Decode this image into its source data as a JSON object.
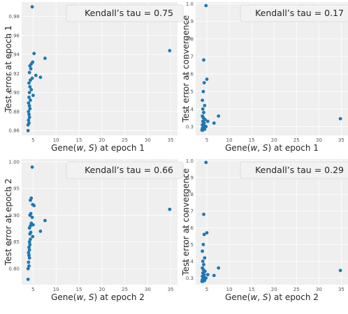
{
  "colors": {
    "point": "#1f77b4",
    "panel_bg": "#efefef",
    "grid": "#ffffff",
    "legend_bg": "#f2f2f2",
    "legend_border": "#d6d6d6"
  },
  "chart_data": [
    {
      "type": "scatter",
      "ylabel": "Test error at epoch 1",
      "xlabel": "Gene(w, S) at epoch 1",
      "annotation": "Kendall’s tau = 0.75",
      "xlim": [
        2.5,
        36.5
      ],
      "ylim": [
        0.855,
        0.995
      ],
      "xticks": [
        "5",
        "10",
        "15",
        "20",
        "25",
        "30",
        "35"
      ],
      "yticks": [
        "0.86",
        "0.88",
        "0.90",
        "0.92",
        "0.94",
        "0.96",
        "0.98"
      ],
      "points": [
        [
          4.8,
          0.99
        ],
        [
          34.8,
          0.944
        ],
        [
          5.2,
          0.941
        ],
        [
          7.6,
          0.936
        ],
        [
          4.9,
          0.932
        ],
        [
          4.6,
          0.93
        ],
        [
          4.3,
          0.928
        ],
        [
          4.5,
          0.925
        ],
        [
          4.2,
          0.921
        ],
        [
          5.6,
          0.918
        ],
        [
          6.6,
          0.916
        ],
        [
          4.8,
          0.915
        ],
        [
          4.4,
          0.913
        ],
        [
          4.1,
          0.91
        ],
        [
          4.3,
          0.906
        ],
        [
          4.6,
          0.903
        ],
        [
          4.2,
          0.9
        ],
        [
          5.0,
          0.897
        ],
        [
          4.1,
          0.895
        ],
        [
          4.4,
          0.892
        ],
        [
          4.0,
          0.889
        ],
        [
          4.2,
          0.886
        ],
        [
          4.3,
          0.883
        ],
        [
          4.0,
          0.88
        ],
        [
          4.1,
          0.877
        ],
        [
          4.2,
          0.874
        ],
        [
          4.0,
          0.871
        ],
        [
          4.1,
          0.868
        ],
        [
          3.9,
          0.866
        ],
        [
          3.9,
          0.86
        ]
      ]
    },
    {
      "type": "scatter",
      "ylabel": "Test error at convergence",
      "xlabel": "Gene(w, S) at epoch 1",
      "annotation": "Kendall’s tau = 0.17",
      "xlim": [
        2.5,
        36.5
      ],
      "ylim": [
        0.25,
        1.01
      ],
      "xticks": [
        "5",
        "10",
        "15",
        "20",
        "25",
        "30",
        "35"
      ],
      "yticks": [
        "0.3",
        "0.4",
        "0.5",
        "0.6",
        "0.7",
        "0.8",
        "0.9",
        "1.0"
      ],
      "points": [
        [
          4.8,
          0.99
        ],
        [
          4.3,
          0.68
        ],
        [
          5.0,
          0.57
        ],
        [
          4.4,
          0.55
        ],
        [
          4.2,
          0.5
        ],
        [
          4.0,
          0.45
        ],
        [
          4.5,
          0.42
        ],
        [
          4.1,
          0.4
        ],
        [
          4.3,
          0.38
        ],
        [
          4.0,
          0.36
        ],
        [
          7.6,
          0.36
        ],
        [
          4.2,
          0.35
        ],
        [
          4.6,
          0.34
        ],
        [
          34.8,
          0.345
        ],
        [
          4.1,
          0.33
        ],
        [
          5.2,
          0.33
        ],
        [
          4.4,
          0.32
        ],
        [
          6.6,
          0.32
        ],
        [
          4.0,
          0.31
        ],
        [
          4.3,
          0.31
        ],
        [
          4.6,
          0.3
        ],
        [
          4.2,
          0.3
        ],
        [
          4.1,
          0.29
        ],
        [
          4.0,
          0.29
        ],
        [
          4.5,
          0.285
        ],
        [
          3.9,
          0.28
        ],
        [
          4.1,
          0.28
        ],
        [
          4.8,
          0.3
        ]
      ]
    },
    {
      "type": "scatter",
      "ylabel": "Test error at epoch 2",
      "xlabel": "Gene(w, S) at epoch 2",
      "annotation": "Kendall’s tau = 0.66",
      "xlim": [
        2.5,
        36.5
      ],
      "ylim": [
        0.77,
        1.005
      ],
      "xticks": [
        "5",
        "10",
        "15",
        "20",
        "25",
        "30",
        "35"
      ],
      "yticks": [
        "0.80",
        "0.85",
        "0.90",
        "0.95",
        "1.00"
      ],
      "points": [
        [
          4.8,
          0.99
        ],
        [
          4.6,
          0.932
        ],
        [
          4.4,
          0.928
        ],
        [
          4.9,
          0.92
        ],
        [
          5.2,
          0.918
        ],
        [
          34.8,
          0.911
        ],
        [
          4.5,
          0.903
        ],
        [
          4.3,
          0.9
        ],
        [
          4.8,
          0.896
        ],
        [
          7.6,
          0.89
        ],
        [
          4.6,
          0.885
        ],
        [
          5.0,
          0.882
        ],
        [
          4.4,
          0.88
        ],
        [
          4.2,
          0.876
        ],
        [
          6.6,
          0.87
        ],
        [
          4.5,
          0.868
        ],
        [
          4.3,
          0.865
        ],
        [
          4.9,
          0.86
        ],
        [
          4.4,
          0.855
        ],
        [
          4.2,
          0.85
        ],
        [
          4.3,
          0.845
        ],
        [
          4.1,
          0.84
        ],
        [
          4.2,
          0.835
        ],
        [
          4.0,
          0.83
        ],
        [
          4.1,
          0.825
        ],
        [
          4.2,
          0.82
        ],
        [
          4.0,
          0.812
        ],
        [
          4.1,
          0.805
        ],
        [
          3.9,
          0.8
        ],
        [
          3.9,
          0.78
        ]
      ]
    },
    {
      "type": "scatter",
      "ylabel": "Test error at convergence",
      "xlabel": "Gene(w, S) at epoch 2",
      "annotation": "Kendall’s tau = 0.29",
      "xlim": [
        2.5,
        36.5
      ],
      "ylim": [
        0.26,
        1.01
      ],
      "xticks": [
        "5",
        "10",
        "15",
        "20",
        "25",
        "30",
        "35"
      ],
      "yticks": [
        "0.3",
        "0.4",
        "0.5",
        "0.6",
        "0.7",
        "0.8",
        "0.9",
        "1.0"
      ],
      "points": [
        [
          4.8,
          0.99
        ],
        [
          4.3,
          0.68
        ],
        [
          5.0,
          0.57
        ],
        [
          4.4,
          0.56
        ],
        [
          4.2,
          0.5
        ],
        [
          4.0,
          0.46
        ],
        [
          4.5,
          0.42
        ],
        [
          4.1,
          0.4
        ],
        [
          4.3,
          0.38
        ],
        [
          4.0,
          0.36
        ],
        [
          7.6,
          0.36
        ],
        [
          4.2,
          0.35
        ],
        [
          4.6,
          0.34
        ],
        [
          34.8,
          0.345
        ],
        [
          4.1,
          0.33
        ],
        [
          5.2,
          0.32
        ],
        [
          4.4,
          0.32
        ],
        [
          6.6,
          0.315
        ],
        [
          4.0,
          0.31
        ],
        [
          4.3,
          0.31
        ],
        [
          4.6,
          0.3
        ],
        [
          4.2,
          0.3
        ],
        [
          4.1,
          0.29
        ],
        [
          4.0,
          0.29
        ],
        [
          4.5,
          0.285
        ],
        [
          3.9,
          0.28
        ],
        [
          4.1,
          0.28
        ],
        [
          4.8,
          0.3
        ]
      ]
    }
  ]
}
